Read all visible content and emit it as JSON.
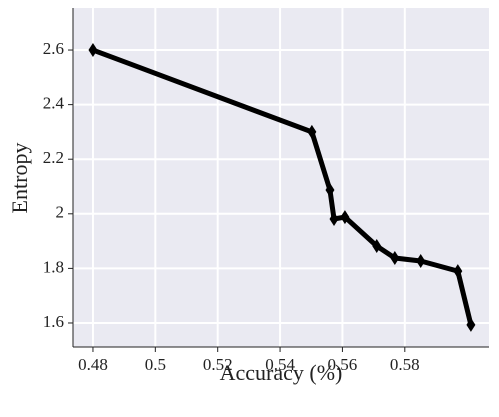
{
  "chart_data": {
    "type": "line",
    "x_label": "Accuracy (%)",
    "y_label": "Entropy",
    "x": [
      0.48,
      0.5502,
      0.556,
      0.5573,
      0.5608,
      0.571,
      0.5768,
      0.5851,
      0.597,
      0.6012
    ],
    "series": [
      {
        "color": "#000000",
        "values": [
          2.6,
          2.3,
          2.087,
          1.981,
          1.988,
          1.882,
          1.838,
          1.827,
          1.79,
          1.593
        ]
      }
    ],
    "xlim": [
      0.4736,
      0.607
    ],
    "xticks": [
      0.48,
      0.5,
      0.52,
      0.54,
      0.56,
      0.58
    ],
    "ylim": [
      1.512,
      2.754
    ],
    "yticks": [
      1.6,
      1.8,
      2.0,
      2.2,
      2.4,
      2.6
    ],
    "grid": true,
    "background": "#eaeaf2"
  }
}
